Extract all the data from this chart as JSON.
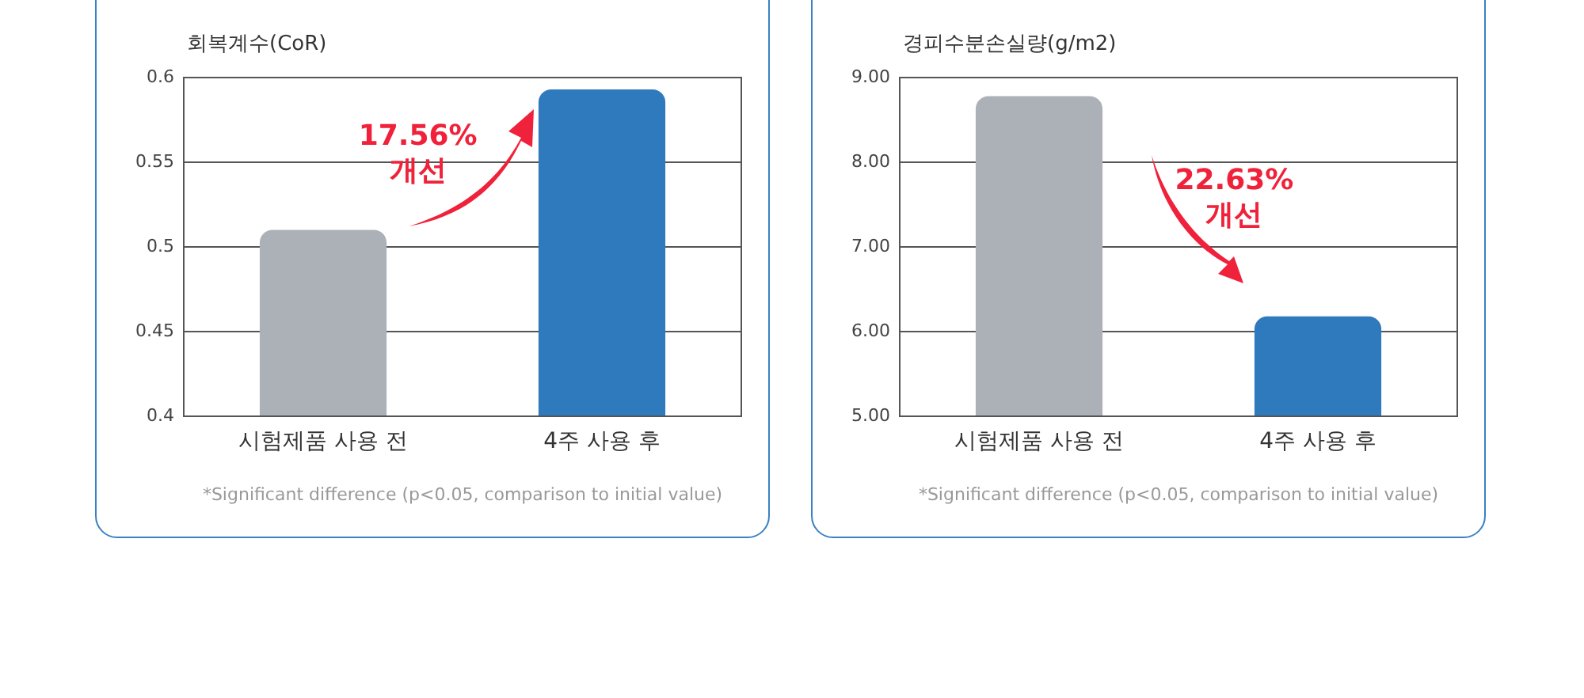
{
  "chart_data": [
    {
      "type": "bar",
      "ylabel": "회복계수(CoR)",
      "categories": [
        "시험제품 사용 전",
        "4주 사용 후"
      ],
      "values": [
        0.51,
        0.593
      ],
      "colors": [
        "#abb1b7",
        "#2f79bd"
      ],
      "ylim": [
        0.4,
        0.6
      ],
      "yticks": [
        0.4,
        0.45,
        0.5,
        0.55,
        0.6
      ],
      "grid": "y",
      "annotations": [
        "17.56%\n개선",
        "*Significant difference (p<0.05, comparison to initial value)"
      ]
    },
    {
      "type": "bar",
      "ylabel": "경피수분손실량(g/m2)",
      "categories": [
        "시험제품 사용 전",
        "4주 사용 후"
      ],
      "values": [
        8.78,
        6.18
      ],
      "colors": [
        "#abb1b7",
        "#2f79bd"
      ],
      "ylim": [
        5,
        9
      ],
      "yticks": [
        {
          "value": 5,
          "label": "5.00"
        },
        {
          "value": 6,
          "label": "6.00"
        },
        {
          "value": 7,
          "label": "7.00"
        },
        {
          "value": 8,
          "label": "8.00"
        },
        {
          "value": 9,
          "label": "9.00"
        }
      ],
      "grid": "y",
      "annotations": [
        "22.63%\n개선",
        "*Significant difference (p<0.05, comparison to initial value)"
      ]
    }
  ]
}
